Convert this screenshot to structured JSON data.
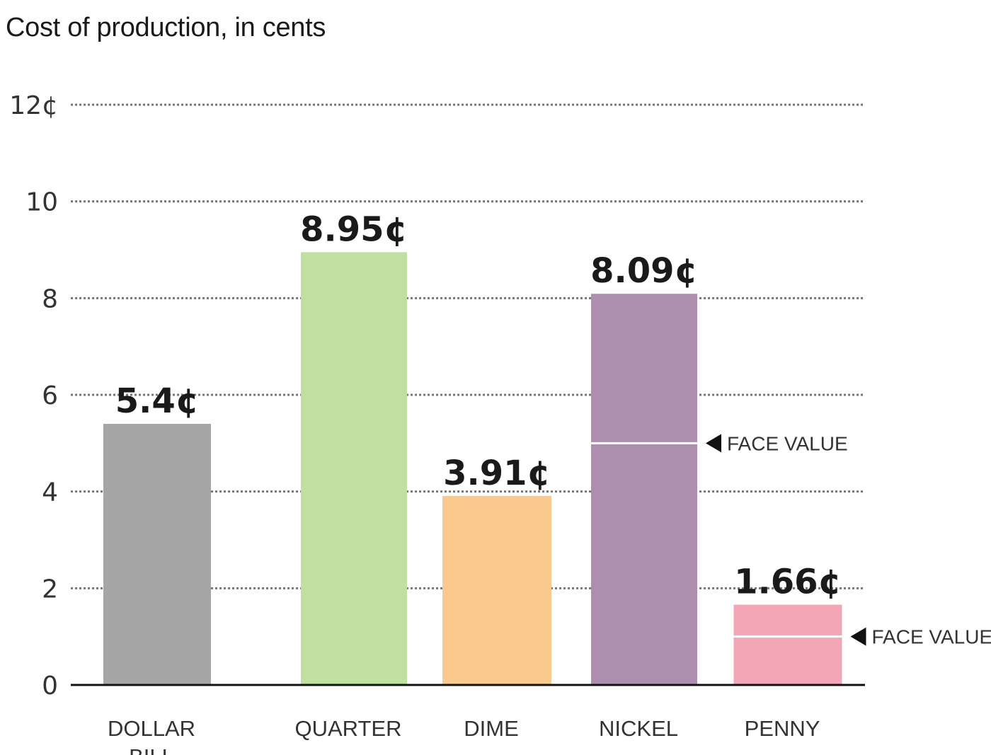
{
  "title": "Cost of production, in cents",
  "chart_data": {
    "type": "bar",
    "title": "Cost of production, in cents",
    "ylim": [
      0,
      12
    ],
    "yticks": [
      {
        "value": 0,
        "label": "0"
      },
      {
        "value": 2,
        "label": "2"
      },
      {
        "value": 4,
        "label": "4"
      },
      {
        "value": 6,
        "label": "6"
      },
      {
        "value": 8,
        "label": "8"
      },
      {
        "value": 10,
        "label": "10"
      },
      {
        "value": 12,
        "label": "12¢"
      }
    ],
    "grid": true,
    "categories": [
      "DOLLAR BILL",
      "QUARTER",
      "DIME",
      "NICKEL",
      "PENNY"
    ],
    "values": [
      5.4,
      8.95,
      3.91,
      8.09,
      1.66
    ],
    "value_labels": [
      "5.4¢",
      "8.95¢",
      "3.91¢",
      "8.09¢",
      "1.66¢"
    ],
    "colors": [
      "#a6a6a6",
      "#bfe0a1",
      "#f9c98e",
      "#ae8eae",
      "#f2a6b6"
    ],
    "face_values": [
      {
        "category": "NICKEL",
        "value": 5,
        "label": "FACE VALUE"
      },
      {
        "category": "PENNY",
        "value": 1,
        "label": "FACE VALUE"
      }
    ]
  }
}
